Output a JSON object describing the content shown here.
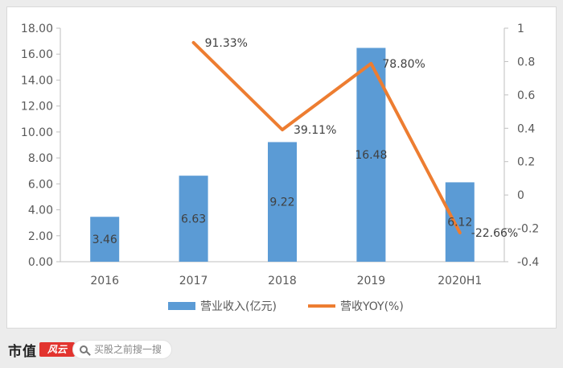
{
  "chart_data": {
    "type": "bar",
    "categories": [
      "2016",
      "2017",
      "2018",
      "2019",
      "2020H1"
    ],
    "series": [
      {
        "name": "营业收入(亿元)",
        "kind": "bar",
        "axis": "left",
        "values": [
          3.46,
          6.63,
          9.22,
          16.48,
          6.12
        ],
        "labels": [
          "3.46",
          "6.63",
          "9.22",
          "16.48",
          "6.12"
        ]
      },
      {
        "name": "营收YOY(%)",
        "kind": "line",
        "axis": "right",
        "values": [
          null,
          0.9133,
          0.3911,
          0.788,
          -0.2266
        ],
        "labels": [
          "",
          "91.33%",
          "39.11%",
          "78.80%",
          "-22.66%"
        ]
      }
    ],
    "y_left": {
      "range": [
        0,
        18
      ],
      "ticks": [
        "0.00",
        "2.00",
        "4.00",
        "6.00",
        "8.00",
        "10.00",
        "12.00",
        "14.00",
        "16.00",
        "18.00"
      ]
    },
    "y_right": {
      "range": [
        -0.4,
        1
      ],
      "ticks": [
        "-0.4",
        "-0.2",
        "0",
        "0.2",
        "0.4",
        "0.6",
        "0.8",
        "1"
      ]
    },
    "legend_position": "bottom",
    "colors": {
      "bar": "#5b9bd5",
      "line": "#ed7d31"
    }
  },
  "footer": {
    "brand": "市值",
    "brand_badge": "风云",
    "search_placeholder": "买股之前搜一搜"
  }
}
